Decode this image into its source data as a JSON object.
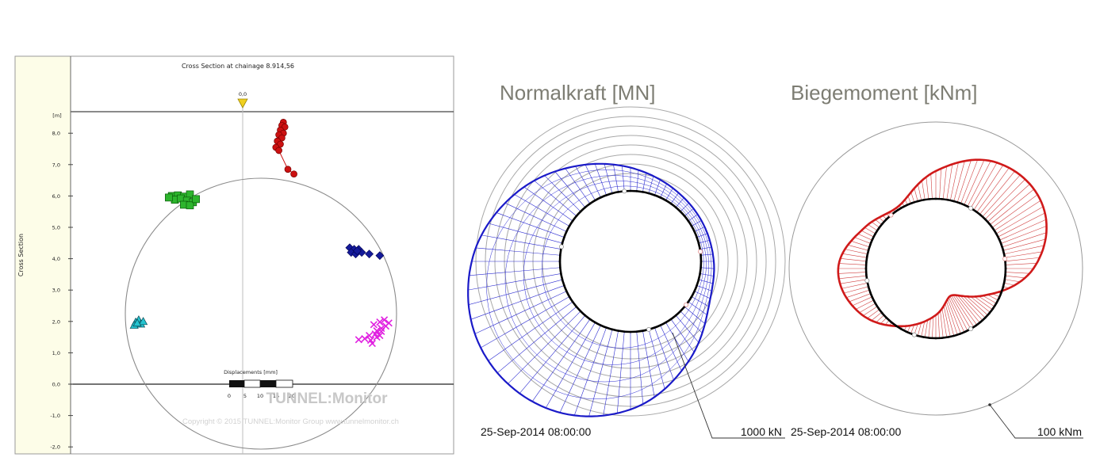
{
  "left_panel": {
    "title": "Cross Section at chainage 8.914,56",
    "ylabel": "Cross Section",
    "yunit": "[m]",
    "yticks": [
      "8,0",
      "7,0",
      "6,0",
      "5,0",
      "4,0",
      "3,0",
      "2,0",
      "1,0",
      "0,0",
      "-1,0",
      "-2,0"
    ],
    "marker_value": "0,0",
    "displacement_legend": {
      "title": "Displacements [mm]",
      "ticks": [
        "0",
        "5",
        "10",
        "15",
        "20"
      ]
    },
    "watermark": "TUNNEL:Monitor",
    "copyright": "Copyright © 2015 TUNNEL:Monitor Group www.tunnelmonitor.ch",
    "colors": {
      "background": "#fdfde8",
      "red": "#cc1111",
      "green": "#2db52d",
      "blue": "#141a9a",
      "cyan": "#25c4d0",
      "magenta": "#e020e0",
      "marker": "#f0d020"
    }
  },
  "chart_data": [
    {
      "type": "scatter",
      "title": "Cross Section at chainage 8.914,56",
      "ylabel": "Cross Section",
      "yunit": "[m]",
      "ylim": [
        -2.0,
        8.5
      ],
      "yticks": [
        8.0,
        7.0,
        6.0,
        5.0,
        4.0,
        3.0,
        2.0,
        1.0,
        0.0,
        -1.0,
        -2.0
      ],
      "tunnel_profile": {
        "shape": "circle",
        "center_y": 2.2,
        "radius": 4.6
      },
      "series": [
        {
          "marker": "circle",
          "color": "#cc1111",
          "points": [
            [
              1.35,
              8.35
            ],
            [
              1.3,
              8.25
            ],
            [
              1.4,
              8.2
            ],
            [
              1.25,
              8.1
            ],
            [
              1.35,
              8.0
            ],
            [
              1.2,
              7.95
            ],
            [
              1.3,
              7.85
            ],
            [
              1.15,
              7.75
            ],
            [
              1.25,
              7.65
            ],
            [
              1.1,
              7.55
            ],
            [
              1.2,
              7.45
            ],
            [
              1.5,
              6.85
            ],
            [
              1.7,
              6.7
            ]
          ]
        },
        {
          "marker": "square",
          "color": "#2db52d",
          "points": [
            [
              -2.35,
              6.0
            ],
            [
              -2.15,
              6.02
            ],
            [
              -1.95,
              5.98
            ],
            [
              -1.75,
              6.05
            ],
            [
              -2.25,
              5.88
            ],
            [
              -2.05,
              5.92
            ],
            [
              -1.85,
              5.85
            ],
            [
              -1.65,
              5.8
            ],
            [
              -1.95,
              5.72
            ],
            [
              -1.75,
              5.7
            ],
            [
              -2.45,
              5.95
            ],
            [
              -1.55,
              5.9
            ]
          ]
        },
        {
          "marker": "diamond",
          "color": "#141a9a",
          "points": [
            [
              3.55,
              4.35
            ],
            [
              3.7,
              4.3
            ],
            [
              3.85,
              4.3
            ],
            [
              3.6,
              4.2
            ],
            [
              3.75,
              4.15
            ],
            [
              3.95,
              4.2
            ],
            [
              4.2,
              4.15
            ],
            [
              4.55,
              4.1
            ],
            [
              3.8,
              4.25
            ]
          ]
        },
        {
          "marker": "triangle",
          "color": "#25c4d0",
          "points": [
            [
              -3.55,
              1.98
            ],
            [
              -3.45,
              2.05
            ],
            [
              -3.38,
              1.92
            ],
            [
              -3.6,
              1.88
            ],
            [
              -3.3,
              2.0
            ],
            [
              -3.5,
              1.95
            ]
          ]
        },
        {
          "marker": "cross",
          "color": "#e020e0",
          "points": [
            [
              4.35,
              1.9
            ],
            [
              4.55,
              1.98
            ],
            [
              4.7,
              2.05
            ],
            [
              4.85,
              1.95
            ],
            [
              4.45,
              1.7
            ],
            [
              4.6,
              1.78
            ],
            [
              4.75,
              1.85
            ],
            [
              4.2,
              1.55
            ],
            [
              4.4,
              1.6
            ],
            [
              4.6,
              1.68
            ],
            [
              4.05,
              1.45
            ],
            [
              4.25,
              1.4
            ],
            [
              4.45,
              1.5
            ],
            [
              3.85,
              1.42
            ],
            [
              4.3,
              1.3
            ],
            [
              4.55,
              1.55
            ]
          ]
        }
      ]
    },
    {
      "type": "polar-diagram",
      "title": "Normalkraft [MN]",
      "timestamp": "25-Sep-2014 08:00:00",
      "scale_label": "1000 kN",
      "series_color": "#1a1ac8",
      "series": [
        {
          "angles_deg": [
            0,
            30,
            60,
            90,
            120,
            150,
            180,
            210,
            240,
            270,
            300,
            330
          ],
          "magnitude_kN": [
            180,
            160,
            200,
            330,
            560,
            900,
            1250,
            1450,
            1400,
            1100,
            640,
            280
          ]
        }
      ]
    },
    {
      "type": "polar-diagram",
      "title": "Biegemoment [kNm]",
      "timestamp": "25-Sep-2014 08:00:00",
      "scale_label": "100 kNm",
      "series_color": "#d01a1a",
      "series": [
        {
          "angles_deg": [
            0,
            30,
            60,
            90,
            120,
            150,
            180,
            210,
            240,
            270,
            300,
            330
          ],
          "moment_kNm": [
            18,
            35,
            34,
            18,
            2,
            8,
            18,
            12,
            -2,
            -15,
            -25,
            -10
          ]
        }
      ]
    }
  ]
}
